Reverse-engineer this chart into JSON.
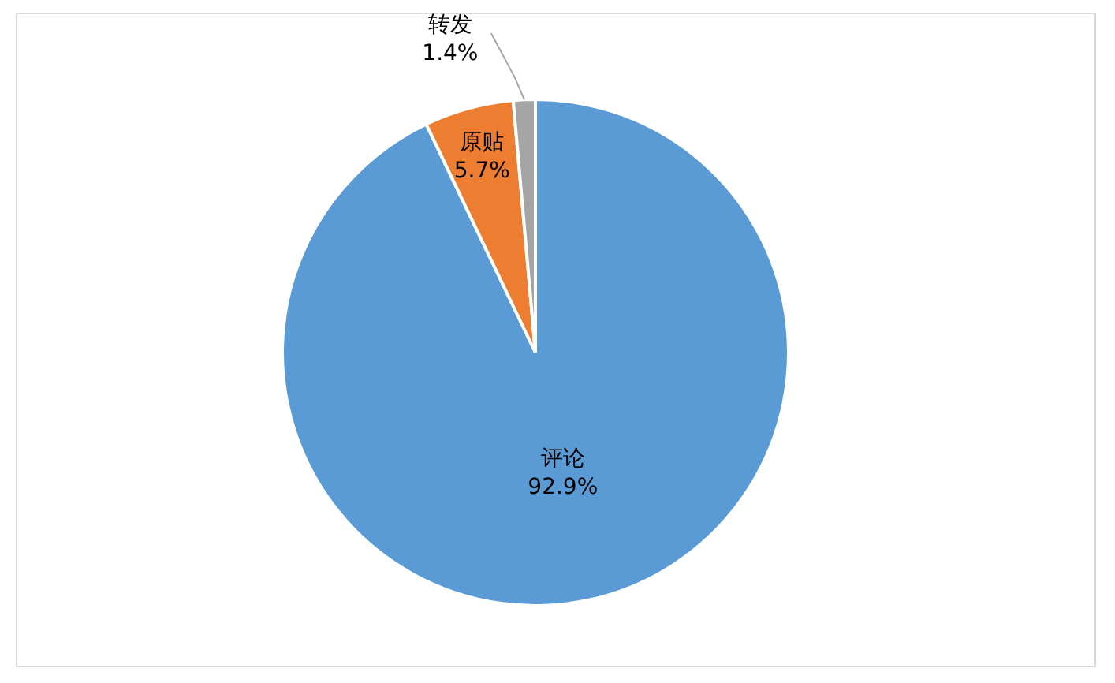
{
  "chart_data": {
    "type": "pie",
    "categories": [
      "评论",
      "原贴",
      "转发"
    ],
    "values": [
      92.9,
      5.7,
      1.4
    ],
    "colors": [
      "#5b9bd5",
      "#ed7d31",
      "#a5a5a5"
    ],
    "value_labels": [
      "92.9%",
      "5.7%",
      "1.4%"
    ]
  }
}
